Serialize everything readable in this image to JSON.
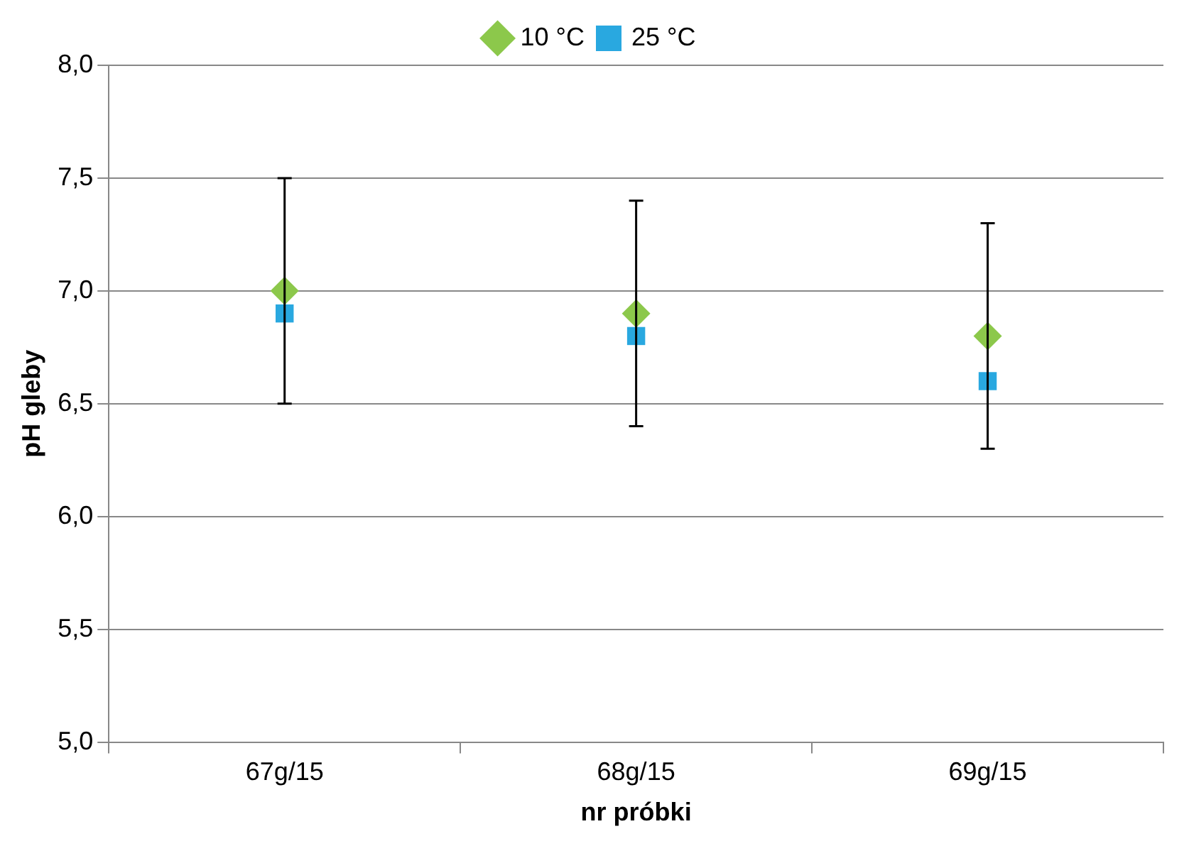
{
  "chart_data": {
    "type": "scatter",
    "xlabel": "nr próbki",
    "ylabel": "pH gleby",
    "categories": [
      "67g/15",
      "68g/15",
      "69g/15"
    ],
    "series": [
      {
        "name": "10 °C",
        "color": "#8cc84b",
        "marker": "diamond",
        "values": [
          7.0,
          6.9,
          6.8
        ],
        "errors": [
          0.5,
          0.5,
          0.5
        ]
      },
      {
        "name": "25 °C",
        "color": "#29a8e0",
        "marker": "square",
        "values": [
          6.9,
          6.8,
          6.6
        ]
      }
    ],
    "ylim": [
      5,
      8
    ],
    "yticks": [
      {
        "value": 5,
        "label": "5,0"
      },
      {
        "value": 5.5,
        "label": "5,5"
      },
      {
        "value": 6,
        "label": "6,0"
      },
      {
        "value": 6.5,
        "label": "6,5"
      },
      {
        "value": 7,
        "label": "7,0"
      },
      {
        "value": 7.5,
        "label": "7,5"
      },
      {
        "value": 8,
        "label": "8,0"
      }
    ],
    "grid": "y",
    "legend": "top"
  }
}
